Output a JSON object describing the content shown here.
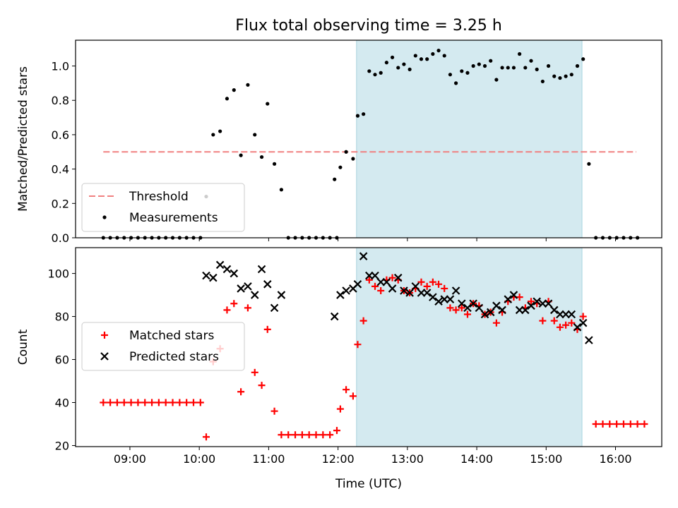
{
  "chart_data": [
    {
      "type": "scatter",
      "title": "Flux total observing time = 3.25 h",
      "xlabel": "",
      "ylabel": "Matched/Predicted stars",
      "ylim": [
        0.0,
        1.15
      ],
      "xlim": [
        "08:13",
        "16:40"
      ],
      "yticks": [
        "0.0",
        "0.2",
        "0.4",
        "0.6",
        "0.8",
        "1.0"
      ],
      "shaded_interval": {
        "start": "12:16",
        "end": "15:31",
        "color": "#d4eaf0"
      },
      "threshold": {
        "label": "Threshold",
        "y": 0.5,
        "x_start": "08:37",
        "x_end": "16:18",
        "color": "#f08080",
        "style": "dashed"
      },
      "legend": {
        "location": "lower-left",
        "entries": [
          "Threshold",
          "Measurements"
        ]
      },
      "series": [
        {
          "name": "Measurements",
          "marker": "dot",
          "color": "#000000",
          "points": [
            [
              "08:37",
              0
            ],
            [
              "08:43",
              0
            ],
            [
              "08:49",
              0
            ],
            [
              "08:55",
              0
            ],
            [
              "09:01",
              0
            ],
            [
              "09:07",
              0
            ],
            [
              "09:13",
              0
            ],
            [
              "09:19",
              0
            ],
            [
              "09:25",
              0
            ],
            [
              "09:31",
              0
            ],
            [
              "09:37",
              0
            ],
            [
              "09:43",
              0
            ],
            [
              "09:49",
              0
            ],
            [
              "09:55",
              0
            ],
            [
              "10:01",
              0
            ],
            [
              "10:06",
              0.24
            ],
            [
              "10:12",
              0.6
            ],
            [
              "10:18",
              0.62
            ],
            [
              "10:24",
              0.81
            ],
            [
              "10:30",
              0.86
            ],
            [
              "10:36",
              0.48
            ],
            [
              "10:42",
              0.89
            ],
            [
              "10:48",
              0.6
            ],
            [
              "10:54",
              0.47
            ],
            [
              "10:59",
              0.78
            ],
            [
              "11:05",
              0.43
            ],
            [
              "11:11",
              0.28
            ],
            [
              "11:17",
              0
            ],
            [
              "11:23",
              0
            ],
            [
              "11:29",
              0
            ],
            [
              "11:35",
              0
            ],
            [
              "11:41",
              0
            ],
            [
              "11:47",
              0
            ],
            [
              "11:53",
              0
            ],
            [
              "11:59",
              0
            ],
            [
              "11:57",
              0.34
            ],
            [
              "12:02",
              0.41
            ],
            [
              "12:07",
              0.5
            ],
            [
              "12:13",
              0.46
            ],
            [
              "12:17",
              0.71
            ],
            [
              "12:22",
              0.72
            ],
            [
              "12:27",
              0.97
            ],
            [
              "12:32",
              0.95
            ],
            [
              "12:37",
              0.96
            ],
            [
              "12:42",
              1.02
            ],
            [
              "12:47",
              1.05
            ],
            [
              "12:52",
              0.99
            ],
            [
              "12:57",
              1.01
            ],
            [
              "13:02",
              0.98
            ],
            [
              "13:07",
              1.06
            ],
            [
              "13:12",
              1.04
            ],
            [
              "13:17",
              1.04
            ],
            [
              "13:22",
              1.07
            ],
            [
              "13:27",
              1.09
            ],
            [
              "13:32",
              1.06
            ],
            [
              "13:37",
              0.95
            ],
            [
              "13:42",
              0.9
            ],
            [
              "13:47",
              0.97
            ],
            [
              "13:52",
              0.96
            ],
            [
              "13:57",
              1.0
            ],
            [
              "14:02",
              1.01
            ],
            [
              "14:07",
              1.0
            ],
            [
              "14:12",
              1.03
            ],
            [
              "14:17",
              0.92
            ],
            [
              "14:22",
              0.99
            ],
            [
              "14:27",
              0.99
            ],
            [
              "14:32",
              0.99
            ],
            [
              "14:37",
              1.07
            ],
            [
              "14:42",
              0.99
            ],
            [
              "14:47",
              1.03
            ],
            [
              "14:52",
              0.98
            ],
            [
              "14:57",
              0.91
            ],
            [
              "15:02",
              1.0
            ],
            [
              "15:07",
              0.94
            ],
            [
              "15:12",
              0.93
            ],
            [
              "15:17",
              0.94
            ],
            [
              "15:22",
              0.95
            ],
            [
              "15:27",
              1.0
            ],
            [
              "15:32",
              1.04
            ],
            [
              "15:37",
              0.43
            ],
            [
              "15:43",
              0
            ],
            [
              "15:49",
              0
            ],
            [
              "15:55",
              0
            ],
            [
              "16:01",
              0
            ],
            [
              "16:07",
              0
            ],
            [
              "16:13",
              0
            ],
            [
              "16:19",
              0
            ]
          ]
        }
      ]
    },
    {
      "type": "scatter",
      "title": "",
      "xlabel": "Time (UTC)",
      "ylabel": "Count",
      "ylim": [
        19.5,
        112
      ],
      "xlim": [
        "08:13",
        "16:40"
      ],
      "xticks": [
        "09:00",
        "10:00",
        "11:00",
        "12:00",
        "13:00",
        "14:00",
        "15:00",
        "16:00"
      ],
      "yticks": [
        "20",
        "40",
        "60",
        "80",
        "100"
      ],
      "shaded_interval": {
        "start": "12:16",
        "end": "15:31",
        "color": "#d4eaf0"
      },
      "legend": {
        "location": "center-left",
        "entries": [
          "Matched stars",
          "Predicted stars"
        ]
      },
      "series": [
        {
          "name": "Matched stars",
          "marker": "plus",
          "color": "#ff0000",
          "points": [
            [
              "08:37",
              40
            ],
            [
              "08:43",
              40
            ],
            [
              "08:49",
              40
            ],
            [
              "08:55",
              40
            ],
            [
              "09:01",
              40
            ],
            [
              "09:07",
              40
            ],
            [
              "09:13",
              40
            ],
            [
              "09:19",
              40
            ],
            [
              "09:25",
              40
            ],
            [
              "09:31",
              40
            ],
            [
              "09:37",
              40
            ],
            [
              "09:43",
              40
            ],
            [
              "09:49",
              40
            ],
            [
              "09:55",
              40
            ],
            [
              "10:01",
              40
            ],
            [
              "10:06",
              24
            ],
            [
              "10:12",
              59
            ],
            [
              "10:18",
              65
            ],
            [
              "10:24",
              83
            ],
            [
              "10:30",
              86
            ],
            [
              "10:36",
              45
            ],
            [
              "10:42",
              84
            ],
            [
              "10:48",
              54
            ],
            [
              "10:54",
              48
            ],
            [
              "10:59",
              74
            ],
            [
              "11:05",
              36
            ],
            [
              "11:11",
              25
            ],
            [
              "11:17",
              25
            ],
            [
              "11:23",
              25
            ],
            [
              "11:29",
              25
            ],
            [
              "11:35",
              25
            ],
            [
              "11:41",
              25
            ],
            [
              "11:47",
              25
            ],
            [
              "11:53",
              25
            ],
            [
              "11:59",
              27
            ],
            [
              "12:02",
              37
            ],
            [
              "12:07",
              46
            ],
            [
              "12:13",
              43
            ],
            [
              "12:17",
              67
            ],
            [
              "12:22",
              78
            ],
            [
              "12:27",
              97
            ],
            [
              "12:32",
              94
            ],
            [
              "12:37",
              92
            ],
            [
              "12:42",
              97
            ],
            [
              "12:47",
              98
            ],
            [
              "12:52",
              97
            ],
            [
              "12:57",
              92
            ],
            [
              "13:02",
              91
            ],
            [
              "13:07",
              93
            ],
            [
              "13:12",
              96
            ],
            [
              "13:17",
              94
            ],
            [
              "13:22",
              96
            ],
            [
              "13:27",
              95
            ],
            [
              "13:32",
              93
            ],
            [
              "13:37",
              84
            ],
            [
              "13:42",
              83
            ],
            [
              "13:47",
              84
            ],
            [
              "13:52",
              81
            ],
            [
              "13:57",
              86
            ],
            [
              "14:02",
              85
            ],
            [
              "14:07",
              81
            ],
            [
              "14:12",
              82
            ],
            [
              "14:17",
              77
            ],
            [
              "14:22",
              82
            ],
            [
              "14:27",
              87
            ],
            [
              "14:32",
              89
            ],
            [
              "14:37",
              89
            ],
            [
              "14:42",
              84
            ],
            [
              "14:47",
              87
            ],
            [
              "14:52",
              86
            ],
            [
              "14:57",
              78
            ],
            [
              "15:02",
              87
            ],
            [
              "15:07",
              78
            ],
            [
              "15:12",
              75
            ],
            [
              "15:17",
              76
            ],
            [
              "15:22",
              77
            ],
            [
              "15:27",
              74
            ],
            [
              "15:32",
              80
            ],
            [
              "15:43",
              30
            ],
            [
              "15:49",
              30
            ],
            [
              "15:55",
              30
            ],
            [
              "16:01",
              30
            ],
            [
              "16:07",
              30
            ],
            [
              "16:13",
              30
            ],
            [
              "16:19",
              30
            ],
            [
              "16:25",
              30
            ]
          ]
        },
        {
          "name": "Predicted stars",
          "marker": "x",
          "color": "#000000",
          "points": [
            [
              "10:06",
              99
            ],
            [
              "10:12",
              98
            ],
            [
              "10:18",
              104
            ],
            [
              "10:24",
              102
            ],
            [
              "10:30",
              100
            ],
            [
              "10:36",
              93
            ],
            [
              "10:42",
              94
            ],
            [
              "10:48",
              90
            ],
            [
              "10:54",
              102
            ],
            [
              "10:59",
              95
            ],
            [
              "11:05",
              84
            ],
            [
              "11:11",
              90
            ],
            [
              "11:57",
              80
            ],
            [
              "12:02",
              90
            ],
            [
              "12:07",
              92
            ],
            [
              "12:13",
              93
            ],
            [
              "12:17",
              95
            ],
            [
              "12:22",
              108
            ],
            [
              "12:27",
              99
            ],
            [
              "12:32",
              99
            ],
            [
              "12:37",
              96
            ],
            [
              "12:42",
              96
            ],
            [
              "12:47",
              93
            ],
            [
              "12:52",
              98
            ],
            [
              "12:57",
              92
            ],
            [
              "13:02",
              91
            ],
            [
              "13:07",
              94
            ],
            [
              "13:12",
              91
            ],
            [
              "13:17",
              91
            ],
            [
              "13:22",
              89
            ],
            [
              "13:27",
              87
            ],
            [
              "13:32",
              88
            ],
            [
              "13:37",
              88
            ],
            [
              "13:42",
              92
            ],
            [
              "13:47",
              86
            ],
            [
              "13:52",
              84
            ],
            [
              "13:57",
              86
            ],
            [
              "14:02",
              84
            ],
            [
              "14:07",
              81
            ],
            [
              "14:12",
              82
            ],
            [
              "14:17",
              85
            ],
            [
              "14:22",
              83
            ],
            [
              "14:27",
              88
            ],
            [
              "14:32",
              90
            ],
            [
              "14:37",
              83
            ],
            [
              "14:42",
              83
            ],
            [
              "14:47",
              85
            ],
            [
              "14:52",
              87
            ],
            [
              "14:57",
              86
            ],
            [
              "15:02",
              86
            ],
            [
              "15:07",
              83
            ],
            [
              "15:12",
              81
            ],
            [
              "15:17",
              81
            ],
            [
              "15:22",
              81
            ],
            [
              "15:27",
              75
            ],
            [
              "15:32",
              77
            ],
            [
              "15:37",
              69
            ]
          ]
        }
      ]
    }
  ]
}
